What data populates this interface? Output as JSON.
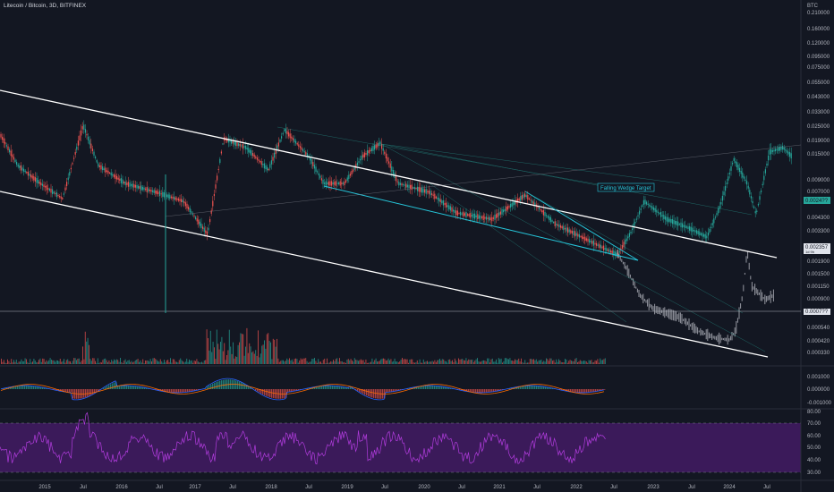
{
  "header": {
    "symbol_title": "Litecoin / Bitcoin, 3D, BITFINEX"
  },
  "price_axis": {
    "currency": "BTC",
    "ticks": [
      "0.210000",
      "0.160000",
      "0.120000",
      "0.095000",
      "0.075000",
      "0.055000",
      "0.043000",
      "0.033000",
      "0.025000",
      "0.019000",
      "0.015000",
      "0.009000",
      "0.007000",
      "0.004300",
      "0.003300",
      "0.001900",
      "0.001500",
      "0.001150",
      "0.000900",
      "0.000540",
      "0.000420",
      "0.000330"
    ],
    "badges": [
      {
        "text": "0.0024??",
        "color": "#26a69a"
      },
      {
        "text": "0.002357",
        "sub": "1d 9h",
        "color": "#e0e3eb"
      },
      {
        "text": "0.0007??",
        "color": "#e0e3eb"
      }
    ]
  },
  "macd_axis": {
    "ticks": [
      "0.001000",
      "0.000000",
      "-0.001000"
    ]
  },
  "rsi_axis": {
    "ticks": [
      "80.00",
      "70.00",
      "60.00",
      "50.00",
      "40.00",
      "30.00"
    ]
  },
  "time_axis": {
    "ticks": [
      "2015",
      "Jul",
      "2016",
      "Jul",
      "2017",
      "Jul",
      "2018",
      "Jul",
      "2019",
      "Jul",
      "2020",
      "Jul",
      "2021",
      "Jul",
      "2022",
      "Jul",
      "2023",
      "Jul",
      "2024",
      "Jul"
    ]
  },
  "annotation": {
    "text": "Falling Wedge Target"
  },
  "colors": {
    "background": "#131722",
    "channel": "#ffffff",
    "wedge": "#26c6da",
    "up": "#26a69a",
    "down": "#ef5350",
    "rsi_band": "#4a1f6b",
    "rsi_line": "#9c27b0",
    "macd": "#2962ff",
    "signal": "#ff6d00"
  }
}
